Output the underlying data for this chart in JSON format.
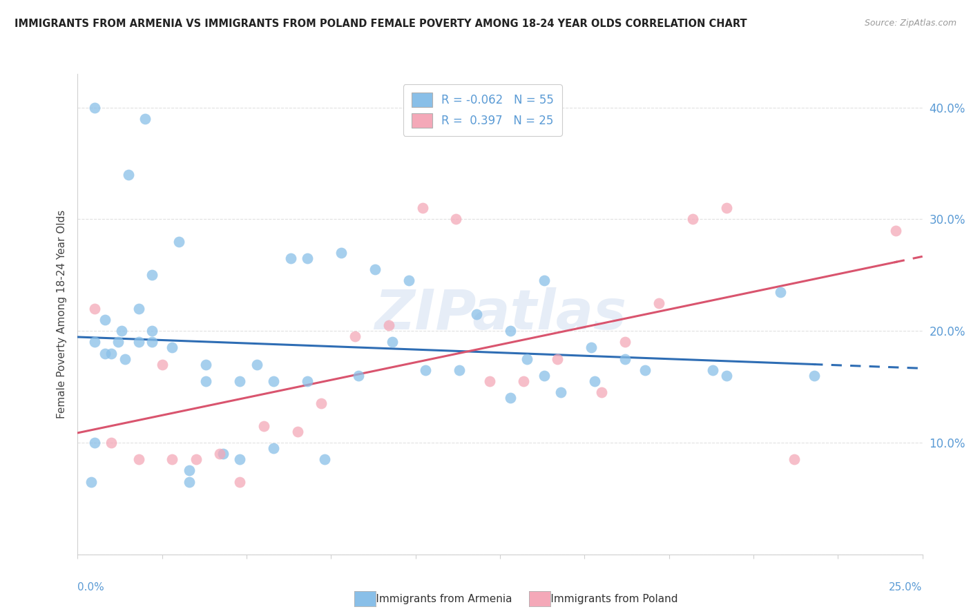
{
  "title": "IMMIGRANTS FROM ARMENIA VS IMMIGRANTS FROM POLAND FEMALE POVERTY AMONG 18-24 YEAR OLDS CORRELATION CHART",
  "source": "Source: ZipAtlas.com",
  "ylabel": "Female Poverty Among 18-24 Year Olds",
  "ytick_values": [
    0.0,
    0.1,
    0.2,
    0.3,
    0.4
  ],
  "ytick_labels": [
    "",
    "10.0%",
    "20.0%",
    "30.0%",
    "40.0%"
  ],
  "xlim": [
    0.0,
    0.25
  ],
  "ylim": [
    0.0,
    0.43
  ],
  "legend_r_armenia": "R = -0.062",
  "legend_n_armenia": "N = 55",
  "legend_r_poland": "R =  0.397",
  "legend_n_poland": "N = 25",
  "color_armenia": "#89bfe8",
  "color_poland": "#f4a8b8",
  "line_color_armenia": "#2e6db4",
  "line_color_poland": "#d9546e",
  "watermark": "ZIPatlas",
  "armenia_x": [
    0.005,
    0.02,
    0.015,
    0.03,
    0.005,
    0.008,
    0.01,
    0.013,
    0.018,
    0.022,
    0.005,
    0.008,
    0.012,
    0.014,
    0.018,
    0.022,
    0.028,
    0.038,
    0.048,
    0.058,
    0.068,
    0.078,
    0.063,
    0.088,
    0.098,
    0.118,
    0.128,
    0.138,
    0.152,
    0.162,
    0.138,
    0.168,
    0.188,
    0.208,
    0.192,
    0.004,
    0.033,
    0.033,
    0.043,
    0.058,
    0.048,
    0.073,
    0.083,
    0.093,
    0.103,
    0.113,
    0.128,
    0.143,
    0.153,
    0.022,
    0.038,
    0.053,
    0.068,
    0.133,
    0.218
  ],
  "armenia_y": [
    0.4,
    0.39,
    0.34,
    0.28,
    0.1,
    0.21,
    0.18,
    0.2,
    0.22,
    0.2,
    0.19,
    0.18,
    0.19,
    0.175,
    0.19,
    0.19,
    0.185,
    0.17,
    0.155,
    0.155,
    0.265,
    0.27,
    0.265,
    0.255,
    0.245,
    0.215,
    0.2,
    0.245,
    0.185,
    0.175,
    0.16,
    0.165,
    0.165,
    0.235,
    0.16,
    0.065,
    0.065,
    0.075,
    0.09,
    0.095,
    0.085,
    0.085,
    0.16,
    0.19,
    0.165,
    0.165,
    0.14,
    0.145,
    0.155,
    0.25,
    0.155,
    0.17,
    0.155,
    0.175,
    0.16
  ],
  "poland_x": [
    0.005,
    0.01,
    0.018,
    0.025,
    0.028,
    0.035,
    0.042,
    0.048,
    0.055,
    0.065,
    0.072,
    0.082,
    0.092,
    0.102,
    0.112,
    0.122,
    0.132,
    0.142,
    0.155,
    0.162,
    0.172,
    0.182,
    0.192,
    0.212,
    0.242
  ],
  "poland_y": [
    0.22,
    0.1,
    0.085,
    0.17,
    0.085,
    0.085,
    0.09,
    0.065,
    0.115,
    0.11,
    0.135,
    0.195,
    0.205,
    0.31,
    0.3,
    0.155,
    0.155,
    0.175,
    0.145,
    0.19,
    0.225,
    0.3,
    0.31,
    0.085,
    0.29
  ]
}
